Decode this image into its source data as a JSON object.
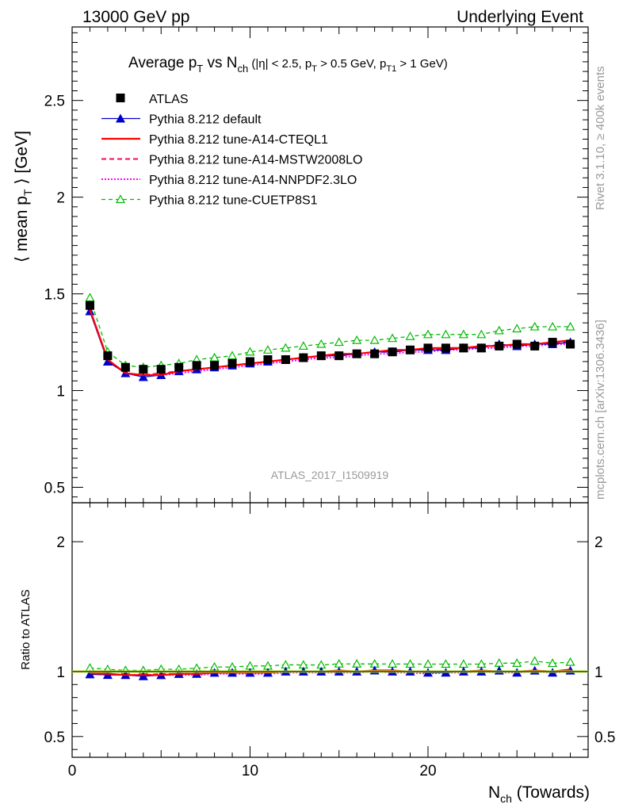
{
  "header": {
    "left": "13000 GeV pp",
    "right": "Underlying Event"
  },
  "title": {
    "prefix": "Average p",
    "p_sub": "T",
    "vs": " vs N",
    "n_sub": "ch",
    "cuts_open": " (|η| < 2.5, p",
    "cut1_sub": "T",
    "cut1_val": " > 0.5 GeV, p",
    "cut2_sub": "T1",
    "cut2_val": " > 1 GeV)"
  },
  "side_labels": {
    "rivet": "Rivet 3.1.10, ≥ 400k events",
    "mcplots": "mcplots.cern.ch [arXiv:1306.3436]"
  },
  "analysis_label": "ATLAS_2017_I1509919",
  "colors": {
    "data": "#000000",
    "default": "#0000cc",
    "cteql1": "#ff0000",
    "mstw": "#ff0066",
    "nnpdf": "#ff00ff",
    "cuetp8s1": "#00bb00"
  },
  "legend": [
    {
      "key": "data",
      "label": "ATLAS"
    },
    {
      "key": "default",
      "label": "Pythia 8.212 default"
    },
    {
      "key": "cteql1",
      "label": "Pythia 8.212 tune-A14-CTEQL1"
    },
    {
      "key": "mstw",
      "label": "Pythia 8.212 tune-A14-MSTW2008LO"
    },
    {
      "key": "nnpdf",
      "label": "Pythia 8.212 tune-A14-NNPDF2.3LO"
    },
    {
      "key": "cuetp8s1",
      "label": "Pythia 8.212 tune-CUETP8S1"
    }
  ],
  "chart_data": {
    "type": "line",
    "title": "Average pT vs Nch (|η| < 2.5, pT > 0.5 GeV, pT1 > 1 GeV)",
    "xlabel_main": "N",
    "xlabel_sub": "ch",
    "xlabel_rest": " (Towards)",
    "ylabel_main_prefix": "⟨ mean p",
    "ylabel_main_sub": "T",
    "ylabel_main_suffix": " ⟩ [GeV]",
    "ylabel_ratio": "Ratio to ATLAS",
    "xlim": [
      0,
      29
    ],
    "ylim_main": [
      0.42,
      2.88
    ],
    "ylim_ratio": [
      0.34,
      2.3
    ],
    "xticks": [
      0,
      10,
      20
    ],
    "yticks_main": [
      0.5,
      1,
      1.5,
      2,
      2.5
    ],
    "yticks_main_labels": [
      "0.5",
      "1",
      "1.5",
      "2",
      "2.5"
    ],
    "yticks_ratio": [
      0.5,
      1,
      2
    ],
    "yticks_ratio_labels": [
      "0.5",
      "1",
      "2"
    ],
    "x": [
      1,
      2,
      3,
      4,
      5,
      6,
      7,
      8,
      9,
      10,
      11,
      12,
      13,
      14,
      15,
      16,
      17,
      18,
      19,
      20,
      21,
      22,
      23,
      24,
      25,
      26,
      27,
      28
    ],
    "series": [
      {
        "key": "data",
        "name": "ATLAS",
        "values": [
          1.44,
          1.18,
          1.12,
          1.11,
          1.11,
          1.12,
          1.13,
          1.13,
          1.14,
          1.15,
          1.16,
          1.16,
          1.17,
          1.18,
          1.18,
          1.19,
          1.19,
          1.2,
          1.21,
          1.22,
          1.22,
          1.22,
          1.22,
          1.23,
          1.24,
          1.23,
          1.25,
          1.24
        ]
      },
      {
        "key": "default",
        "name": "Pythia 8.212 default",
        "values": [
          1.41,
          1.15,
          1.09,
          1.07,
          1.08,
          1.1,
          1.11,
          1.12,
          1.13,
          1.14,
          1.15,
          1.16,
          1.17,
          1.18,
          1.18,
          1.19,
          1.2,
          1.2,
          1.21,
          1.21,
          1.21,
          1.22,
          1.22,
          1.24,
          1.23,
          1.24,
          1.24,
          1.25
        ]
      },
      {
        "key": "cteql1",
        "name": "Pythia 8.212 tune-A14-CTEQL1",
        "values": [
          1.42,
          1.16,
          1.09,
          1.08,
          1.08,
          1.1,
          1.11,
          1.12,
          1.13,
          1.14,
          1.15,
          1.16,
          1.17,
          1.18,
          1.19,
          1.19,
          1.2,
          1.21,
          1.21,
          1.22,
          1.22,
          1.22,
          1.23,
          1.23,
          1.24,
          1.24,
          1.25,
          1.26
        ]
      },
      {
        "key": "mstw",
        "name": "Pythia 8.212 tune-A14-MSTW2008LO",
        "values": [
          1.42,
          1.16,
          1.09,
          1.08,
          1.09,
          1.1,
          1.11,
          1.12,
          1.13,
          1.14,
          1.15,
          1.16,
          1.17,
          1.18,
          1.18,
          1.19,
          1.2,
          1.2,
          1.21,
          1.21,
          1.22,
          1.22,
          1.23,
          1.23,
          1.24,
          1.24,
          1.25,
          1.25
        ]
      },
      {
        "key": "nnpdf",
        "name": "Pythia 8.212 tune-A14-NNPDF2.3LO",
        "values": [
          1.41,
          1.16,
          1.09,
          1.08,
          1.08,
          1.09,
          1.1,
          1.11,
          1.12,
          1.13,
          1.14,
          1.15,
          1.16,
          1.17,
          1.17,
          1.18,
          1.19,
          1.19,
          1.2,
          1.2,
          1.21,
          1.21,
          1.22,
          1.22,
          1.23,
          1.23,
          1.24,
          1.24
        ]
      },
      {
        "key": "cuetp8s1",
        "name": "Pythia 8.212 tune-CUETP8S1",
        "values": [
          1.48,
          1.2,
          1.13,
          1.12,
          1.13,
          1.14,
          1.16,
          1.17,
          1.18,
          1.2,
          1.21,
          1.22,
          1.23,
          1.24,
          1.25,
          1.26,
          1.26,
          1.27,
          1.28,
          1.29,
          1.29,
          1.29,
          1.29,
          1.31,
          1.32,
          1.33,
          1.33,
          1.33
        ]
      }
    ]
  }
}
